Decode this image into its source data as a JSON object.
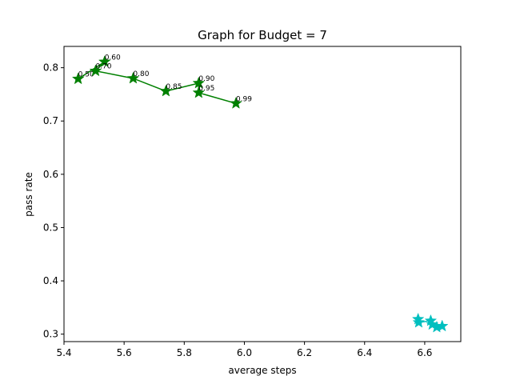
{
  "chart_data": {
    "type": "line",
    "title": "Graph for Budget = 7",
    "xlabel": "average steps",
    "ylabel": "pass rate",
    "xlim": [
      5.4,
      6.72
    ],
    "ylim": [
      0.286,
      0.84
    ],
    "xticks": [
      5.4,
      5.6,
      5.8,
      6.0,
      6.2,
      6.4,
      6.6
    ],
    "xtick_labels": [
      "5.4",
      "5.6",
      "5.8",
      "6.0",
      "6.2",
      "6.4",
      "6.6"
    ],
    "yticks": [
      0.3,
      0.4,
      0.5,
      0.6,
      0.7,
      0.8
    ],
    "ytick_labels": [
      "0.3",
      "0.4",
      "0.5",
      "0.6",
      "0.7",
      "0.8"
    ],
    "grid": false,
    "series": [
      {
        "color": "#008000",
        "marker": "star",
        "line": true,
        "points": [
          {
            "x": 5.447,
            "y": 0.779,
            "label": "0.50"
          },
          {
            "x": 5.535,
            "y": 0.811,
            "label": "0.60"
          },
          {
            "x": 5.505,
            "y": 0.794,
            "label": "0.70"
          },
          {
            "x": 5.63,
            "y": 0.78,
            "label": "0.80"
          },
          {
            "x": 5.739,
            "y": 0.756,
            "label": "0.85"
          },
          {
            "x": 5.848,
            "y": 0.771,
            "label": "0.90"
          },
          {
            "x": 5.848,
            "y": 0.753,
            "label": "0.95"
          },
          {
            "x": 5.972,
            "y": 0.733,
            "label": "0.99"
          }
        ]
      },
      {
        "color": "#00bfbf",
        "marker": "star",
        "line": true,
        "points": [
          {
            "x": 6.578,
            "y": 0.328
          },
          {
            "x": 6.58,
            "y": 0.322
          },
          {
            "x": 6.62,
            "y": 0.325
          },
          {
            "x": 6.625,
            "y": 0.318
          },
          {
            "x": 6.64,
            "y": 0.313
          },
          {
            "x": 6.658,
            "y": 0.315
          }
        ]
      }
    ]
  }
}
